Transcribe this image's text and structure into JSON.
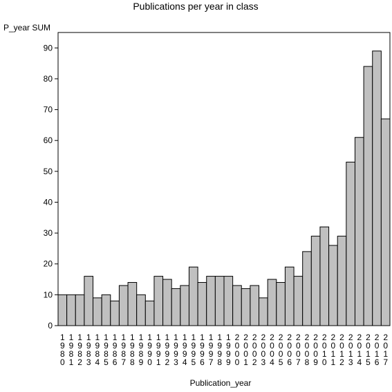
{
  "chart_data": {
    "type": "bar",
    "title": "Publications per year in class",
    "ylabel": "P_year SUM",
    "xlabel": "Publication_year",
    "categories": [
      "1980",
      "1981",
      "1982",
      "1983",
      "1984",
      "1985",
      "1986",
      "1987",
      "1988",
      "1989",
      "1990",
      "1991",
      "1992",
      "1993",
      "1994",
      "1995",
      "1996",
      "1997",
      "1998",
      "1999",
      "2000",
      "2001",
      "2002",
      "2003",
      "2004",
      "2005",
      "2006",
      "2007",
      "2008",
      "2009",
      "2010",
      "2011",
      "2012",
      "2013",
      "2014",
      "2015",
      "2016",
      "2017"
    ],
    "values": [
      10,
      10,
      10,
      16,
      9,
      10,
      8,
      13,
      14,
      10,
      8,
      16,
      15,
      12,
      13,
      19,
      14,
      16,
      16,
      16,
      13,
      12,
      13,
      9,
      15,
      14,
      19,
      16,
      24,
      29,
      32,
      26,
      29,
      53,
      61,
      84,
      89,
      67
    ],
    "ylim": [
      0,
      95
    ],
    "yticks": [
      0,
      10,
      20,
      30,
      40,
      50,
      60,
      70,
      80,
      90
    ],
    "grid": false,
    "legend": "none",
    "bar_color": "#c0c0c0",
    "edge_color": "#000000"
  }
}
